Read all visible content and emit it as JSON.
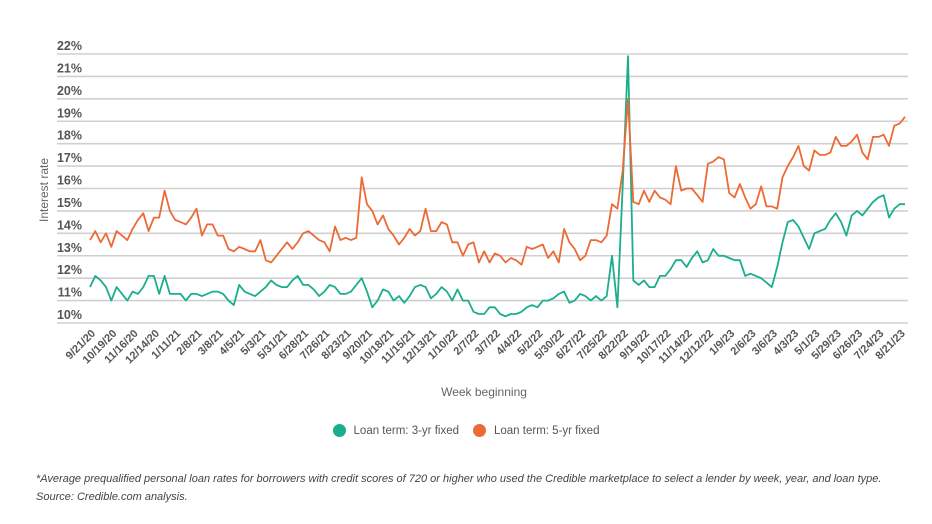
{
  "chart_data": {
    "type": "line",
    "title": "",
    "xlabel": "Week beginning",
    "ylabel": "Interest rate",
    "ylim": [
      10,
      22
    ],
    "yticks": [
      "10%",
      "11%",
      "12%",
      "13%",
      "14%",
      "15%",
      "16%",
      "17%",
      "18%",
      "19%",
      "20%",
      "21%",
      "22%"
    ],
    "grid": true,
    "legend_position": "bottom",
    "xticks": [
      "9/21/20",
      "10/19/20",
      "11/16/20",
      "12/14/20",
      "1/11/21",
      "2/8/21",
      "3/8/21",
      "4/5/21",
      "5/3/21",
      "5/31/21",
      "6/28/21",
      "7/26/21",
      "8/23/21",
      "9/20/21",
      "10/18/21",
      "11/15/21",
      "12/13/21",
      "1/10/22",
      "2/7/22",
      "3/7/22",
      "4/4/22",
      "5/2/22",
      "5/30/22",
      "6/27/22",
      "7/25/22",
      "8/22/22",
      "9/19/22",
      "10/17/22",
      "11/14/22",
      "12/12/22",
      "1/9/23",
      "2/6/23",
      "3/6/23",
      "4/3/23",
      "5/1/23",
      "5/29/23",
      "6/26/23",
      "7/24/23",
      "8/21/23"
    ],
    "x": [
      "9/21/20",
      "9/28/20",
      "10/5/20",
      "10/12/20",
      "10/19/20",
      "10/26/20",
      "11/2/20",
      "11/9/20",
      "11/16/20",
      "11/23/20",
      "11/30/20",
      "12/7/20",
      "12/14/20",
      "12/21/20",
      "12/28/20",
      "1/4/21",
      "1/11/21",
      "1/18/21",
      "1/25/21",
      "2/1/21",
      "2/8/21",
      "2/15/21",
      "2/22/21",
      "3/1/21",
      "3/8/21",
      "3/15/21",
      "3/22/21",
      "3/29/21",
      "4/5/21",
      "4/12/21",
      "4/19/21",
      "4/26/21",
      "5/3/21",
      "5/10/21",
      "5/17/21",
      "5/24/21",
      "5/31/21",
      "6/7/21",
      "6/14/21",
      "6/21/21",
      "6/28/21",
      "7/5/21",
      "7/12/21",
      "7/19/21",
      "7/26/21",
      "8/2/21",
      "8/9/21",
      "8/16/21",
      "8/23/21",
      "8/30/21",
      "9/6/21",
      "9/13/21",
      "9/20/21",
      "9/27/21",
      "10/4/21",
      "10/11/21",
      "10/18/21",
      "10/25/21",
      "11/1/21",
      "11/8/21",
      "11/15/21",
      "11/22/21",
      "11/29/21",
      "12/6/21",
      "12/13/21",
      "12/20/21",
      "12/27/21",
      "1/3/22",
      "1/10/22",
      "1/17/22",
      "1/24/22",
      "1/31/22",
      "2/7/22",
      "2/14/22",
      "2/21/22",
      "2/28/22",
      "3/7/22",
      "3/14/22",
      "3/21/22",
      "3/28/22",
      "4/4/22",
      "4/11/22",
      "4/18/22",
      "4/25/22",
      "5/2/22",
      "5/9/22",
      "5/16/22",
      "5/23/22",
      "5/30/22",
      "6/6/22",
      "6/13/22",
      "6/20/22",
      "6/27/22",
      "7/4/22",
      "7/11/22",
      "7/18/22",
      "7/25/22",
      "8/1/22",
      "8/8/22",
      "8/15/22",
      "8/22/22",
      "8/29/22",
      "9/5/22",
      "9/12/22",
      "9/19/22",
      "9/26/22",
      "10/3/22",
      "10/10/22",
      "10/17/22",
      "10/24/22",
      "10/31/22",
      "11/7/22",
      "11/14/22",
      "11/21/22",
      "11/28/22",
      "12/5/22",
      "12/12/22",
      "12/19/22",
      "12/26/22",
      "1/2/23",
      "1/9/23",
      "1/16/23",
      "1/23/23",
      "1/30/23",
      "2/6/23",
      "2/13/23",
      "2/20/23",
      "2/27/23",
      "3/6/23",
      "3/13/23",
      "3/20/23",
      "3/27/23",
      "4/3/23",
      "4/10/23",
      "4/17/23",
      "4/24/23",
      "5/1/23",
      "5/8/23",
      "5/15/23",
      "5/22/23",
      "5/29/23",
      "6/5/23",
      "6/12/23",
      "6/19/23",
      "6/26/23",
      "7/3/23",
      "7/10/23",
      "7/17/23",
      "7/24/23",
      "7/31/23",
      "8/7/23",
      "8/14/23",
      "8/21/23",
      "8/28/23"
    ],
    "series": [
      {
        "name": "Loan term: 3-yr fixed",
        "color": "#1aae8f",
        "values": [
          11.6,
          12.1,
          11.9,
          11.6,
          11.0,
          11.6,
          11.3,
          11.0,
          11.4,
          11.3,
          11.6,
          12.1,
          12.1,
          11.3,
          12.1,
          11.3,
          11.3,
          11.3,
          11.0,
          11.3,
          11.3,
          11.2,
          11.3,
          11.4,
          11.4,
          11.3,
          11.0,
          10.8,
          11.7,
          11.4,
          11.3,
          11.2,
          11.4,
          11.6,
          11.9,
          11.7,
          11.6,
          11.6,
          11.9,
          12.1,
          11.7,
          11.7,
          11.5,
          11.2,
          11.4,
          11.7,
          11.6,
          11.3,
          11.3,
          11.4,
          11.7,
          12.0,
          11.4,
          10.7,
          11.0,
          11.5,
          11.4,
          11.0,
          11.2,
          10.9,
          11.2,
          11.6,
          11.7,
          11.6,
          11.1,
          11.3,
          11.6,
          11.4,
          11.0,
          11.5,
          11.0,
          11.0,
          10.5,
          10.4,
          10.4,
          10.7,
          10.7,
          10.4,
          10.3,
          10.4,
          10.4,
          10.5,
          10.7,
          10.8,
          10.7,
          11.0,
          11.0,
          11.1,
          11.3,
          11.4,
          10.9,
          11.0,
          11.3,
          11.2,
          11.0,
          11.2,
          11.0,
          11.2,
          13.0,
          10.7,
          16.1,
          21.9,
          11.9,
          11.7,
          11.9,
          11.6,
          11.6,
          12.1,
          12.1,
          12.4,
          12.8,
          12.8,
          12.5,
          12.9,
          13.2,
          12.7,
          12.8,
          13.3,
          13.0,
          13.0,
          12.9,
          12.8,
          12.8,
          12.1,
          12.2,
          12.1,
          12.0,
          11.8,
          11.6,
          12.5,
          13.6,
          14.5,
          14.6,
          14.3,
          13.8,
          13.3,
          14.0,
          14.1,
          14.2,
          14.6,
          14.9,
          14.5,
          13.9,
          14.8,
          15.0,
          14.8,
          15.1,
          15.4,
          15.6,
          15.7,
          14.7,
          15.1,
          15.3,
          15.3
        ]
      },
      {
        "name": "Loan term: 5-yr fixed",
        "color": "#ec6a36",
        "values": [
          13.7,
          14.1,
          13.6,
          14.0,
          13.4,
          14.1,
          13.9,
          13.7,
          14.2,
          14.6,
          14.9,
          14.1,
          14.7,
          14.7,
          15.9,
          15.0,
          14.6,
          14.5,
          14.4,
          14.7,
          15.1,
          13.9,
          14.4,
          14.4,
          13.9,
          13.9,
          13.3,
          13.2,
          13.4,
          13.3,
          13.2,
          13.2,
          13.7,
          12.8,
          12.7,
          13.0,
          13.3,
          13.6,
          13.3,
          13.6,
          14.0,
          14.1,
          13.9,
          13.7,
          13.6,
          13.2,
          14.3,
          13.7,
          13.8,
          13.7,
          13.8,
          16.5,
          15.3,
          15.0,
          14.4,
          14.8,
          14.2,
          13.9,
          13.5,
          13.8,
          14.2,
          13.9,
          14.1,
          15.1,
          14.1,
          14.1,
          14.5,
          14.4,
          13.6,
          13.6,
          13.0,
          13.5,
          13.6,
          12.7,
          13.2,
          12.7,
          13.1,
          13.0,
          12.7,
          12.9,
          12.8,
          12.6,
          13.4,
          13.3,
          13.4,
          13.5,
          12.9,
          13.2,
          12.7,
          14.2,
          13.6,
          13.3,
          12.8,
          13.0,
          13.7,
          13.7,
          13.6,
          13.9,
          15.3,
          15.1,
          16.8,
          20.0,
          15.4,
          15.3,
          15.9,
          15.4,
          15.9,
          15.6,
          15.5,
          15.3,
          17.0,
          15.9,
          16.0,
          16.0,
          15.7,
          15.4,
          17.1,
          17.2,
          17.4,
          17.3,
          15.8,
          15.6,
          16.2,
          15.6,
          15.1,
          15.3,
          16.1,
          15.2,
          15.2,
          15.1,
          16.5,
          17.0,
          17.4,
          17.9,
          17.0,
          16.8,
          17.7,
          17.5,
          17.5,
          17.6,
          18.3,
          17.9,
          17.9,
          18.1,
          18.4,
          17.6,
          17.3,
          18.3,
          18.3,
          18.4,
          17.9,
          18.8,
          18.9,
          19.2
        ]
      }
    ]
  },
  "footnote": "*Average prequalified personal loan rates for borrowers with credit scores of 720 or higher who used the Credible marketplace to select a lender by week, year, and loan type. Source: Credible.com analysis."
}
